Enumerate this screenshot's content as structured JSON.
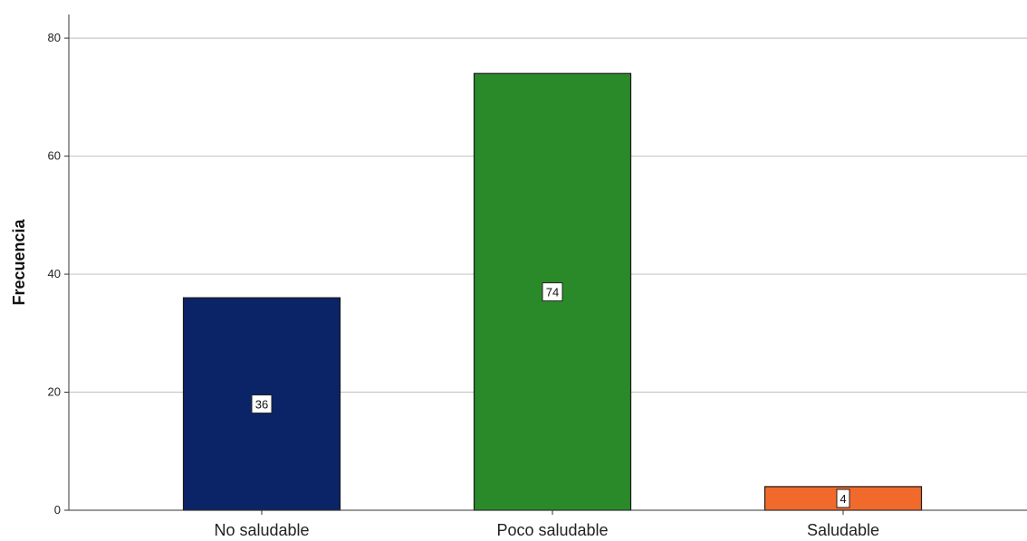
{
  "chart_data": {
    "type": "bar",
    "categories": [
      "No saludable",
      "Poco saludable",
      "Saludable"
    ],
    "values": [
      36,
      74,
      4
    ],
    "ylabel": "Frecuencia",
    "xlabel": "",
    "ylim": [
      0,
      84
    ],
    "yticks": [
      0,
      20,
      40,
      60,
      80
    ],
    "grid": true,
    "data_labels": true,
    "bar_colors": [
      "#0b2467",
      "#2a8a2a",
      "#f26a2b"
    ]
  }
}
